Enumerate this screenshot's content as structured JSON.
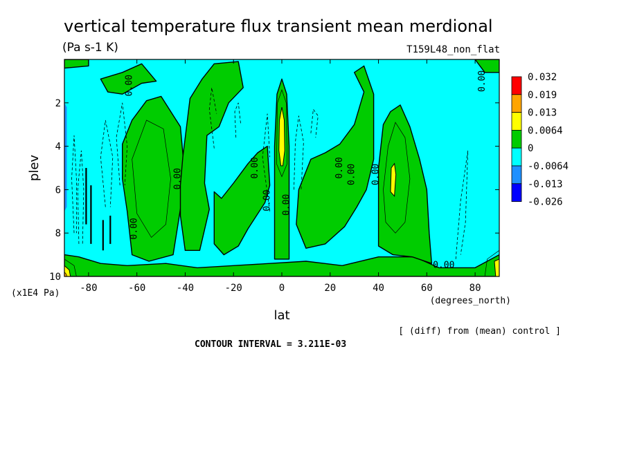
{
  "chart_data": {
    "type": "heatmap",
    "title": "vertical temperature flux transient mean merdional",
    "subtitle_left": "(Pa s-1 K)",
    "subtitle_right": "T159L48_non_flat",
    "xlabel": "lat",
    "xunits": "(degrees_north)",
    "ylabel": "plev",
    "yunits": "(x1E4 Pa)",
    "xlim": [
      -90,
      90
    ],
    "ylim": [
      10,
      0
    ],
    "x_ticks": [
      -80,
      -60,
      -40,
      -20,
      0,
      20,
      40,
      60,
      80
    ],
    "y_ticks": [
      2,
      4,
      6,
      8,
      10
    ],
    "footnote": "[ (diff) from (mean) control ]",
    "contour_interval": "CONTOUR INTERVAL = 3.211E-03",
    "legend": {
      "labels": [
        "0.032",
        "0.019",
        "0.013",
        "0.0064",
        "0",
        "-0.0064",
        "-0.013",
        "-0.026"
      ],
      "colors": [
        "#ff0000",
        "#ffa500",
        "#ffff00",
        "#00cc00",
        "#00ffff",
        "#1e90ff",
        "#0000ff"
      ]
    },
    "contour_labels": [
      {
        "lat": -62,
        "plev": 1.2,
        "text": "0.00"
      },
      {
        "lat": -60,
        "plev": 7.8,
        "text": "0.00"
      },
      {
        "lat": -42,
        "plev": 5.5,
        "text": "0.00"
      },
      {
        "lat": -10,
        "plev": 5.0,
        "text": "0.00"
      },
      {
        "lat": -5,
        "plev": 6.5,
        "text": "0.00"
      },
      {
        "lat": 3,
        "plev": 6.7,
        "text": "0.00"
      },
      {
        "lat": 25,
        "plev": 5.0,
        "text": "0.00"
      },
      {
        "lat": 30,
        "plev": 5.3,
        "text": "0.00"
      },
      {
        "lat": 40,
        "plev": 5.3,
        "text": "0.00"
      },
      {
        "lat": 84,
        "plev": 1.0,
        "text": "0.00"
      },
      {
        "lat": 67,
        "plev": 9.6,
        "text": "0.00"
      }
    ]
  }
}
